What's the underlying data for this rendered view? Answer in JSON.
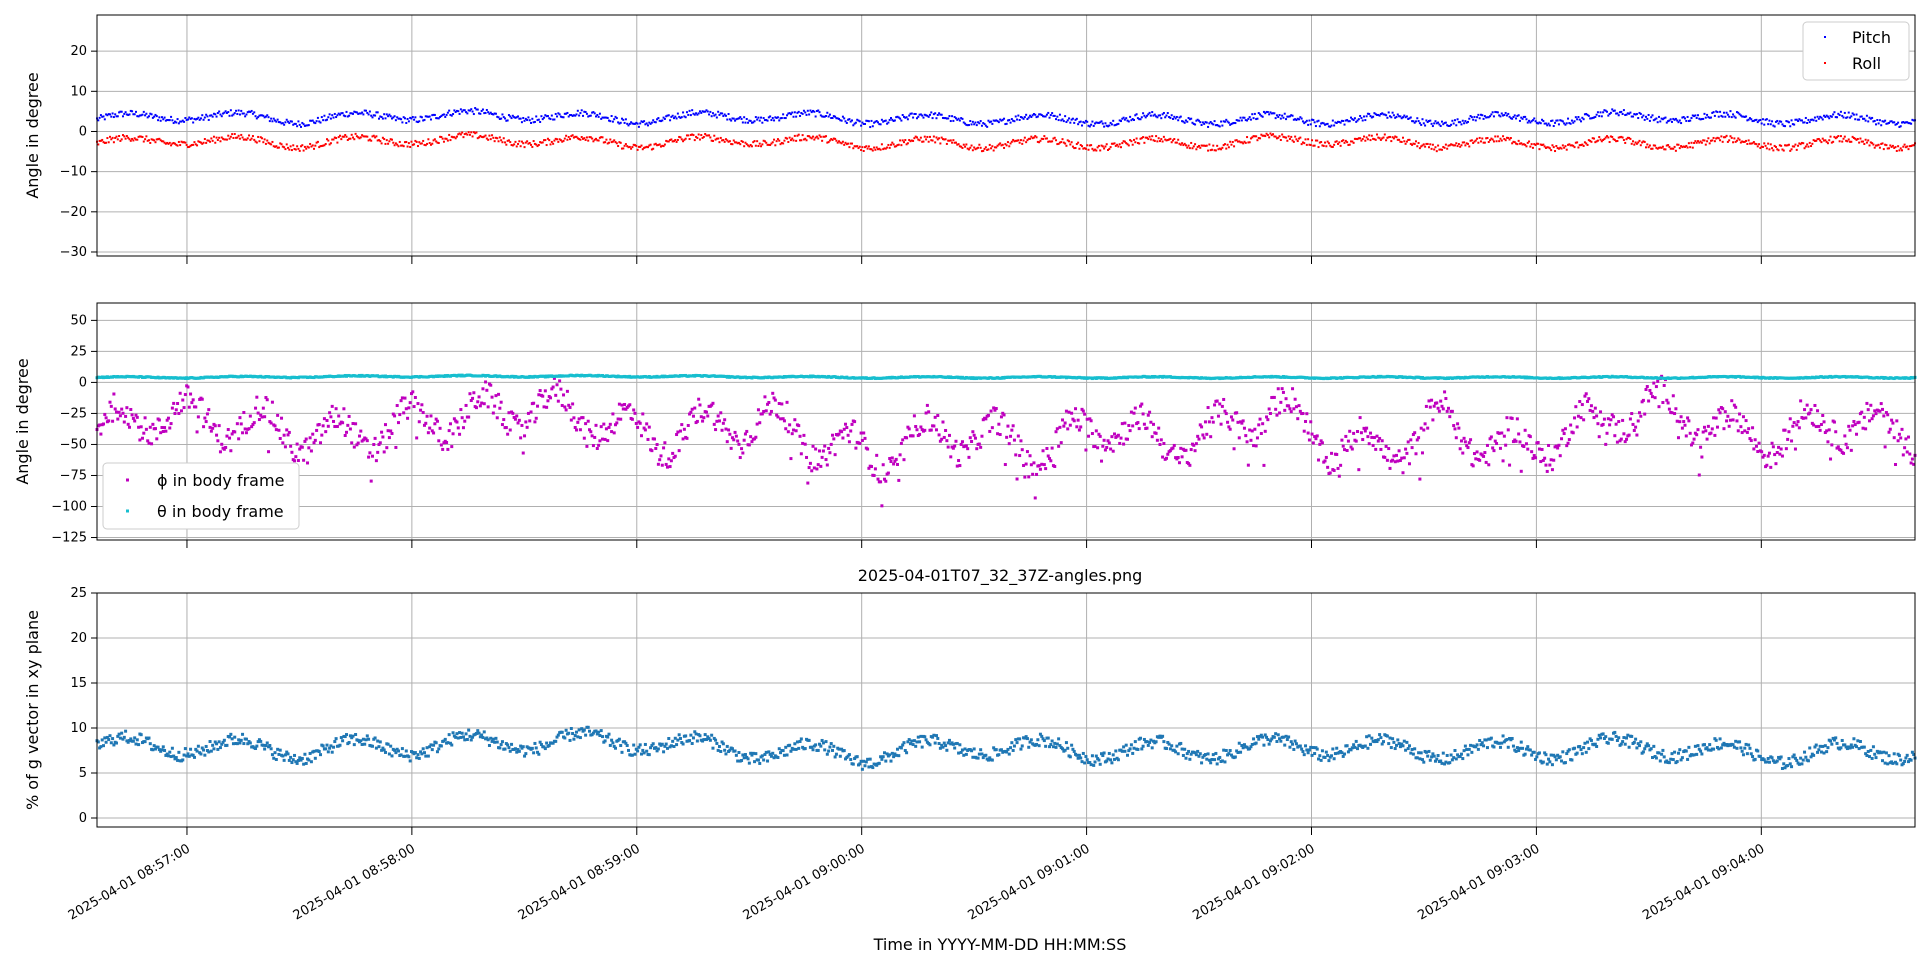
{
  "figure": {
    "xlabel": "Time in YYYY-MM-DD HH:MM:SS",
    "xticks": [
      "2025-04-01 08:57:00",
      "2025-04-01 08:58:00",
      "2025-04-01 08:59:00",
      "2025-04-01 09:00:00",
      "2025-04-01 09:01:00",
      "2025-04-01 09:02:00",
      "2025-04-01 09:03:00",
      "2025-04-01 09:04:00"
    ]
  },
  "chart_data": [
    {
      "type": "scatter",
      "ylabel": "Angle in degree",
      "ylim": [
        -31,
        29
      ],
      "yticks": [
        20,
        10,
        0,
        -10,
        -20,
        -30
      ],
      "ytick_labels": [
        "20",
        "10",
        "0",
        "−10",
        "−20",
        "−30"
      ],
      "xlim": [
        "2025-04-01 08:56:36",
        "2025-04-01 09:04:41"
      ],
      "grid": true,
      "legend_position": "top-right",
      "series": [
        {
          "name": "Pitch",
          "color": "#0000ff",
          "x": [
            "2025-04-01 08:56:36",
            "2025-04-01 08:57:00",
            "2025-04-01 08:57:30",
            "2025-04-01 08:58:00",
            "2025-04-01 08:58:30",
            "2025-04-01 08:59:00",
            "2025-04-01 08:59:30",
            "2025-04-01 09:00:00",
            "2025-04-01 09:00:30",
            "2025-04-01 09:01:00",
            "2025-04-01 09:01:30",
            "2025-04-01 09:02:00",
            "2025-04-01 09:02:30",
            "2025-04-01 09:03:00",
            "2025-04-01 09:03:30",
            "2025-04-01 09:04:00",
            "2025-04-01 09:04:30"
          ],
          "y": [
            3,
            4,
            3,
            4,
            4,
            3,
            4,
            3,
            3,
            3,
            3,
            3,
            3,
            3,
            4,
            3,
            3
          ]
        },
        {
          "name": "Roll",
          "color": "#ff0000",
          "x": [
            "2025-04-01 08:56:36",
            "2025-04-01 08:57:00",
            "2025-04-01 08:57:30",
            "2025-04-01 08:58:00",
            "2025-04-01 08:58:30",
            "2025-04-01 08:59:00",
            "2025-04-01 08:59:30",
            "2025-04-01 09:00:00",
            "2025-04-01 09:00:30",
            "2025-04-01 09:01:00",
            "2025-04-01 09:01:30",
            "2025-04-01 09:02:00",
            "2025-04-01 09:02:30",
            "2025-04-01 09:03:00",
            "2025-04-01 09:03:30",
            "2025-04-01 09:04:00",
            "2025-04-01 09:04:30"
          ],
          "y": [
            -3,
            -2,
            -3,
            -2,
            -2,
            -3,
            -2,
            -3,
            -3,
            -3,
            -3,
            -2,
            -3,
            -3,
            -3,
            -3,
            -3
          ]
        }
      ]
    },
    {
      "type": "scatter",
      "ylabel": "Angle in degree",
      "ylim": [
        -127,
        64
      ],
      "yticks": [
        50,
        25,
        0,
        -25,
        -50,
        -75,
        -100,
        -125
      ],
      "ytick_labels": [
        "50",
        "25",
        "0",
        "−25",
        "−50",
        "−75",
        "−100",
        "−125"
      ],
      "xlim": [
        "2025-04-01 08:56:36",
        "2025-04-01 09:04:41"
      ],
      "grid": true,
      "legend_position": "lower-left",
      "series": [
        {
          "name": "ϕ in body frame",
          "color": "#bf00bf",
          "x": [
            "2025-04-01 08:56:36",
            "2025-04-01 08:56:50",
            "2025-04-01 08:57:05",
            "2025-04-01 08:57:20",
            "2025-04-01 08:57:35",
            "2025-04-01 08:57:50",
            "2025-04-01 08:58:05",
            "2025-04-01 08:58:20",
            "2025-04-01 08:58:35",
            "2025-04-01 08:58:50",
            "2025-04-01 08:59:05",
            "2025-04-01 08:59:20",
            "2025-04-01 08:59:35",
            "2025-04-01 08:59:50",
            "2025-04-01 09:00:05",
            "2025-04-01 09:00:20",
            "2025-04-01 09:00:35",
            "2025-04-01 09:00:50",
            "2025-04-01 09:01:05",
            "2025-04-01 09:01:20",
            "2025-04-01 09:01:35",
            "2025-04-01 09:01:50",
            "2025-04-01 09:02:05",
            "2025-04-01 09:02:20",
            "2025-04-01 09:02:35",
            "2025-04-01 09:02:50",
            "2025-04-01 09:03:05",
            "2025-04-01 09:03:20",
            "2025-04-01 09:03:35",
            "2025-04-01 09:03:50",
            "2025-04-01 09:04:05",
            "2025-04-01 09:04:20",
            "2025-04-01 09:04:35"
          ],
          "y": [
            -40,
            -25,
            -30,
            -35,
            -45,
            -40,
            -30,
            -25,
            -20,
            -30,
            -45,
            -35,
            -30,
            -50,
            -60,
            -40,
            -45,
            -55,
            -30,
            -50,
            -40,
            -20,
            -50,
            -55,
            -30,
            -55,
            -45,
            -25,
            -20,
            -40,
            -45,
            -30,
            -40
          ]
        },
        {
          "name": "θ in body frame",
          "color": "#17becf",
          "x": [
            "2025-04-01 08:56:36",
            "2025-04-01 08:57:00",
            "2025-04-01 08:58:00",
            "2025-04-01 08:59:00",
            "2025-04-01 09:00:00",
            "2025-04-01 09:01:00",
            "2025-04-01 09:02:00",
            "2025-04-01 09:03:00",
            "2025-04-01 09:04:00",
            "2025-04-01 09:04:41"
          ],
          "y": [
            4,
            4,
            5,
            5,
            4,
            4,
            4,
            4,
            4,
            4
          ]
        }
      ]
    },
    {
      "type": "scatter",
      "title": "2025-04-01T07_32_37Z-angles.png",
      "ylabel": "% of g vector in xy plane",
      "ylim": [
        -1,
        25
      ],
      "yticks": [
        25,
        20,
        15,
        10,
        5,
        0
      ],
      "ytick_labels": [
        "25",
        "20",
        "15",
        "10",
        "5",
        "0"
      ],
      "xlim": [
        "2025-04-01 08:56:36",
        "2025-04-01 09:04:41"
      ],
      "grid": true,
      "series": [
        {
          "color": "#1f77b4",
          "x": [
            "2025-04-01 08:56:36",
            "2025-04-01 08:57:00",
            "2025-04-01 08:57:30",
            "2025-04-01 08:58:00",
            "2025-04-01 08:58:30",
            "2025-04-01 08:59:00",
            "2025-04-01 08:59:30",
            "2025-04-01 09:00:00",
            "2025-04-01 09:00:30",
            "2025-04-01 09:01:00",
            "2025-04-01 09:01:30",
            "2025-04-01 09:02:00",
            "2025-04-01 09:02:30",
            "2025-04-01 09:03:00",
            "2025-04-01 09:03:30",
            "2025-04-01 09:04:00",
            "2025-04-01 09:04:30"
          ],
          "y": [
            8,
            8,
            7.5,
            8,
            8.5,
            8.5,
            7.5,
            7,
            8,
            7.5,
            7.5,
            8,
            7.5,
            7.5,
            8,
            7,
            7.5
          ]
        }
      ]
    }
  ]
}
